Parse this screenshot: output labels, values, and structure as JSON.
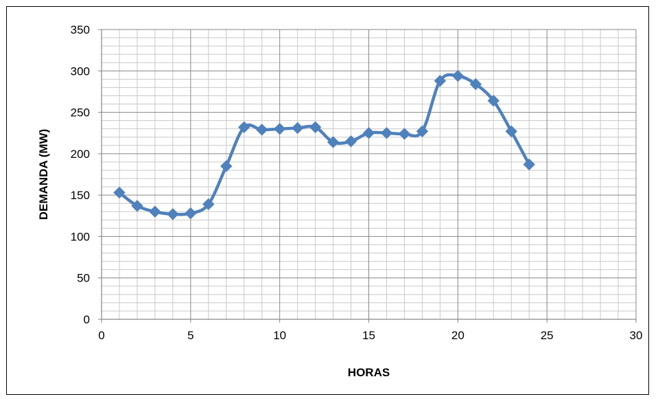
{
  "colors": {
    "series": "#4f81bd",
    "marker": "#4f81bd",
    "major_grid": "#868686",
    "minor_grid": "#c8c8c8",
    "axis": "#868686"
  },
  "chart_data": {
    "type": "line",
    "title": "",
    "xlabel": "HORAS",
    "ylabel": "DEMANDA (MW)",
    "xlim": [
      0,
      30
    ],
    "ylim": [
      0,
      350
    ],
    "x_major_step": 5,
    "y_major_step": 50,
    "x_minor_step": 1,
    "y_minor_step": 10,
    "grid": true,
    "legend": "none",
    "smoothed": true,
    "marker": "diamond",
    "x_ticks": [
      "0",
      "5",
      "10",
      "15",
      "20",
      "25",
      "30"
    ],
    "y_ticks": [
      "0",
      "50",
      "100",
      "150",
      "200",
      "250",
      "300",
      "350"
    ],
    "series": [
      {
        "x": [
          1,
          2,
          3,
          4,
          5,
          6,
          7,
          8,
          9,
          10,
          11,
          12,
          13,
          14,
          15,
          16,
          17,
          18,
          19,
          20,
          21,
          22,
          23,
          24
        ],
        "values": [
          153,
          137,
          130,
          127,
          128,
          139,
          185,
          232,
          229,
          230,
          231,
          232,
          214,
          215,
          225,
          225,
          224,
          227,
          288,
          294,
          284,
          264,
          227,
          187
        ]
      }
    ]
  }
}
